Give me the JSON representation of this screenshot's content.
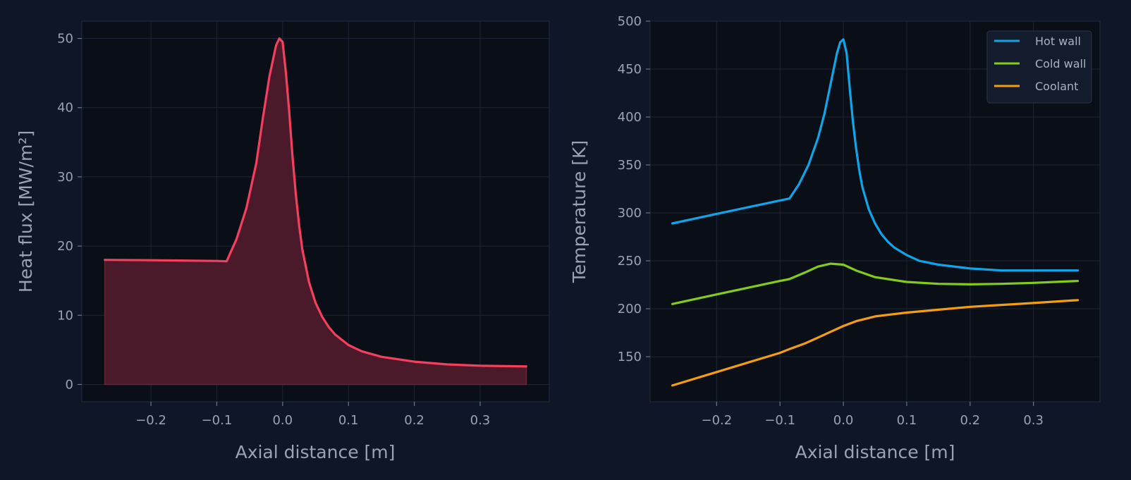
{
  "chart_data": [
    {
      "type": "area",
      "xlabel": "Axial distance [m]",
      "ylabel": "Heat flux [MW/m²]",
      "xlim": [
        -0.305,
        0.405
      ],
      "ylim": [
        -2.5,
        52.5
      ],
      "xticks": [
        -0.2,
        -0.1,
        0.0,
        0.1,
        0.2,
        0.3
      ],
      "xtick_labels": [
        "−0.2",
        "−0.1",
        "0.0",
        "0.1",
        "0.2",
        "0.3"
      ],
      "yticks": [
        0,
        10,
        20,
        30,
        40,
        50
      ],
      "ytick_labels": [
        "0",
        "10",
        "20",
        "30",
        "40",
        "50"
      ],
      "grid": true,
      "series": [
        {
          "color": "#f43f5e",
          "fill": "#4a1a2a",
          "x": [
            -0.27,
            -0.2,
            -0.1,
            -0.085,
            -0.07,
            -0.055,
            -0.04,
            -0.03,
            -0.02,
            -0.01,
            -0.005,
            0.0,
            0.005,
            0.01,
            0.015,
            0.02,
            0.025,
            0.03,
            0.04,
            0.05,
            0.06,
            0.07,
            0.08,
            0.1,
            0.12,
            0.15,
            0.2,
            0.25,
            0.3,
            0.37
          ],
          "y": [
            18.0,
            17.95,
            17.85,
            17.8,
            21.0,
            25.5,
            32.0,
            38.5,
            44.5,
            49.0,
            50.0,
            49.5,
            45.0,
            39.5,
            33.0,
            27.5,
            23.0,
            19.5,
            14.8,
            11.8,
            9.8,
            8.3,
            7.2,
            5.7,
            4.8,
            4.0,
            3.3,
            2.9,
            2.7,
            2.6
          ]
        }
      ]
    },
    {
      "type": "line",
      "xlabel": "Axial distance [m]",
      "ylabel": "Temperature [K]",
      "xlim": [
        -0.305,
        0.405
      ],
      "ylim": [
        103,
        500
      ],
      "xticks": [
        -0.2,
        -0.1,
        0.0,
        0.1,
        0.2,
        0.3
      ],
      "xtick_labels": [
        "−0.2",
        "−0.1",
        "0.0",
        "0.1",
        "0.2",
        "0.3"
      ],
      "yticks": [
        150,
        200,
        250,
        300,
        350,
        400,
        450,
        500
      ],
      "ytick_labels": [
        "150",
        "200",
        "250",
        "300",
        "350",
        "400",
        "450",
        "500"
      ],
      "grid": true,
      "legend_position": "top-right",
      "series": [
        {
          "name": "Hot wall",
          "color": "#0ea5e9",
          "x": [
            -0.27,
            -0.2,
            -0.1,
            -0.085,
            -0.07,
            -0.055,
            -0.04,
            -0.03,
            -0.02,
            -0.01,
            -0.005,
            0.0,
            0.005,
            0.01,
            0.015,
            0.02,
            0.025,
            0.03,
            0.04,
            0.05,
            0.06,
            0.07,
            0.08,
            0.1,
            0.12,
            0.15,
            0.2,
            0.25,
            0.3,
            0.37
          ],
          "y": [
            289,
            299,
            313,
            315,
            330,
            350,
            378,
            403,
            435,
            467,
            478,
            481,
            467,
            430,
            396,
            368,
            345,
            327,
            304,
            289,
            278,
            270,
            264,
            256,
            250,
            246,
            242,
            240,
            240,
            240
          ]
        },
        {
          "name": "Cold wall",
          "color": "#84cc16",
          "x": [
            -0.27,
            -0.2,
            -0.1,
            -0.085,
            -0.06,
            -0.04,
            -0.02,
            0.0,
            0.02,
            0.05,
            0.1,
            0.15,
            0.2,
            0.25,
            0.3,
            0.37
          ],
          "y": [
            205,
            215,
            229,
            231,
            238,
            244,
            247,
            246,
            240,
            233,
            228,
            226,
            225.5,
            226,
            227,
            229
          ]
        },
        {
          "name": "Coolant",
          "color": "#f59e0b",
          "x": [
            -0.27,
            -0.2,
            -0.1,
            -0.085,
            -0.06,
            -0.04,
            -0.02,
            0.0,
            0.02,
            0.05,
            0.1,
            0.15,
            0.2,
            0.25,
            0.3,
            0.37
          ],
          "y": [
            120,
            134,
            154,
            158,
            164,
            170,
            176,
            182,
            187,
            192,
            196,
            199,
            202,
            204,
            206,
            209
          ]
        }
      ]
    }
  ]
}
